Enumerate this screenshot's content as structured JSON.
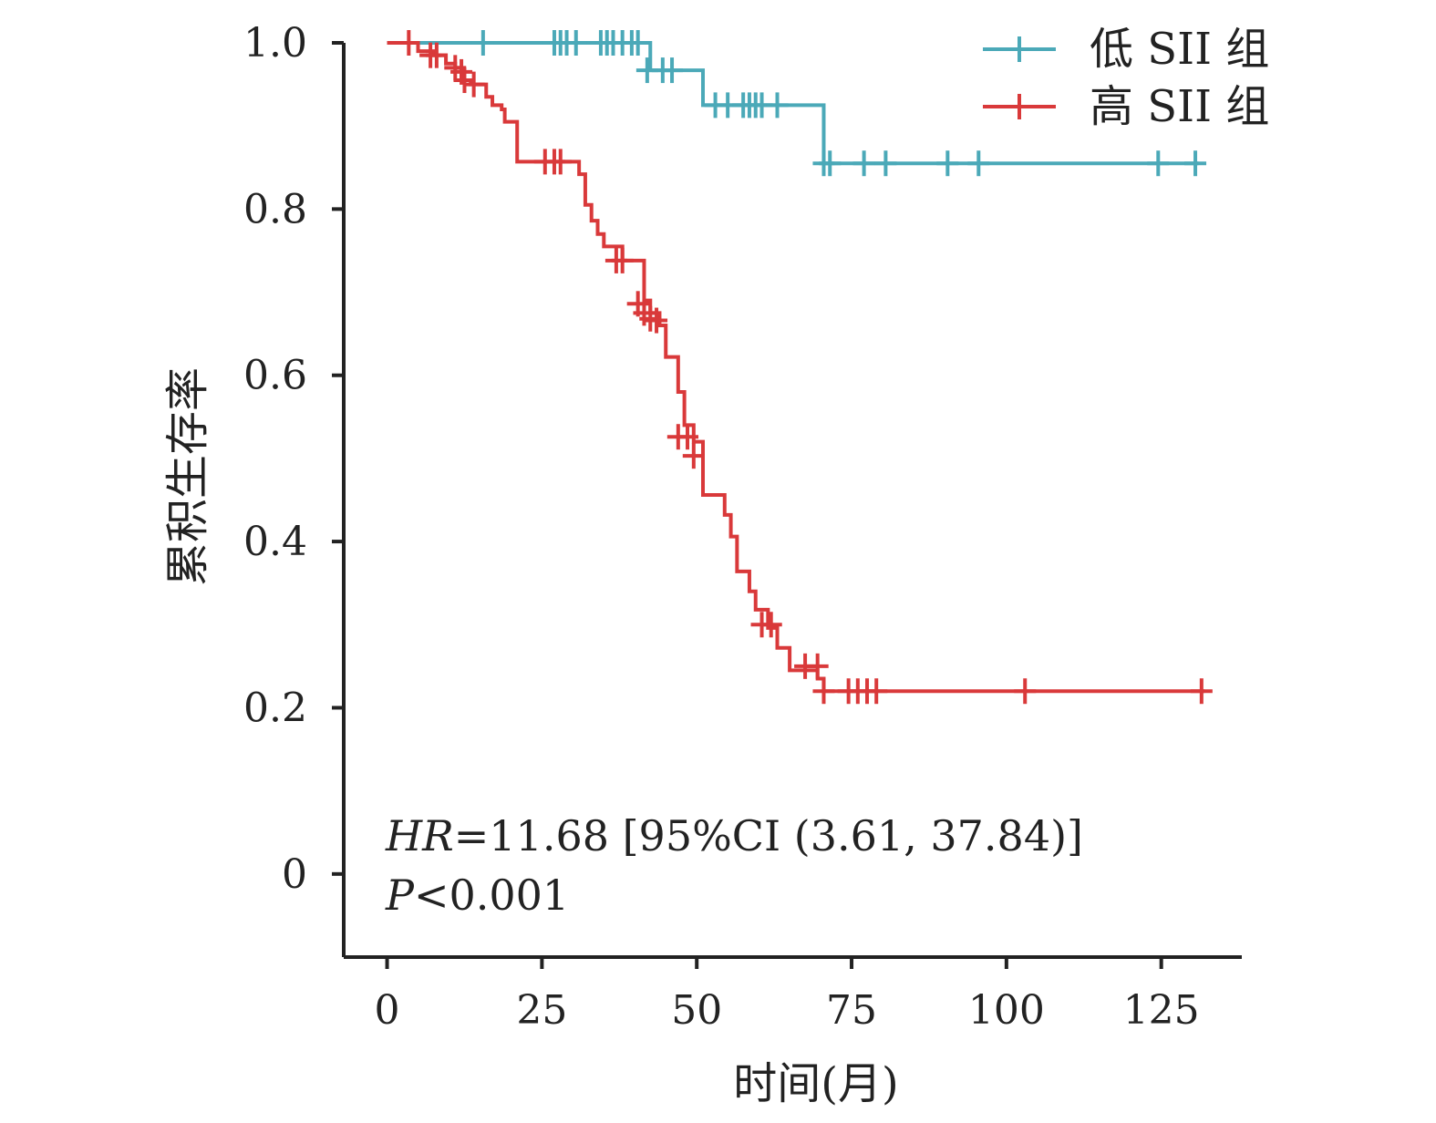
{
  "chart_data": {
    "type": "line",
    "subtype": "kaplan-meier",
    "title": "",
    "xlabel": "时间(月)",
    "ylabel": "累积生存率",
    "xlim": [
      -7,
      138
    ],
    "ylim": [
      -0.1,
      1.0
    ],
    "xticks": [
      0,
      25,
      50,
      75,
      100,
      125
    ],
    "xtick_labels": [
      "0",
      "25",
      "50",
      "75",
      "100",
      "125"
    ],
    "yticks": [
      0,
      0.2,
      0.4,
      0.6,
      0.8,
      1.0
    ],
    "ytick_labels": [
      "0",
      "0.2",
      "0.4",
      "0.6",
      "0.8",
      "1.0"
    ],
    "grid": false,
    "legend": "top-right",
    "annotations": {
      "hr_label": "HR",
      "hr_value": "=11.68 [95%CI (3.61, 37.84)]",
      "p_label": "P",
      "p_value": "<0.001"
    },
    "series": [
      {
        "name": "低 SII 组",
        "color": "#4BA9B8",
        "steps": [
          [
            0,
            1.0
          ],
          [
            42.5,
            0.967
          ],
          [
            51,
            0.925
          ],
          [
            70.5,
            0.855
          ],
          [
            131,
            0.855
          ]
        ],
        "censored": [
          [
            15.5,
            1.0
          ],
          [
            27,
            1.0
          ],
          [
            28,
            1.0
          ],
          [
            29,
            1.0
          ],
          [
            30.5,
            1.0
          ],
          [
            34.5,
            1.0
          ],
          [
            35.5,
            1.0
          ],
          [
            36.5,
            1.0
          ],
          [
            38,
            1.0
          ],
          [
            39.5,
            1.0
          ],
          [
            40.5,
            1.0
          ],
          [
            42,
            0.967
          ],
          [
            44.5,
            0.967
          ],
          [
            46,
            0.967
          ],
          [
            53,
            0.925
          ],
          [
            55,
            0.925
          ],
          [
            57.5,
            0.925
          ],
          [
            58.5,
            0.925
          ],
          [
            59.5,
            0.925
          ],
          [
            60.5,
            0.925
          ],
          [
            63,
            0.925
          ],
          [
            70.5,
            0.855
          ],
          [
            71.5,
            0.855
          ],
          [
            77,
            0.855
          ],
          [
            80.5,
            0.855
          ],
          [
            90.5,
            0.855
          ],
          [
            95.5,
            0.855
          ],
          [
            124.5,
            0.855
          ],
          [
            130.5,
            0.855
          ]
        ]
      },
      {
        "name": "高 SII 组",
        "color": "#D9393A",
        "steps": [
          [
            0,
            1.0
          ],
          [
            5,
            0.99
          ],
          [
            7.5,
            0.985
          ],
          [
            9.5,
            0.975
          ],
          [
            11,
            0.97
          ],
          [
            12,
            0.955
          ],
          [
            13.5,
            0.95
          ],
          [
            16,
            0.935
          ],
          [
            17,
            0.925
          ],
          [
            18.5,
            0.92
          ],
          [
            19,
            0.905
          ],
          [
            21,
            0.857
          ],
          [
            31,
            0.842
          ],
          [
            32,
            0.805
          ],
          [
            33,
            0.786
          ],
          [
            34,
            0.77
          ],
          [
            35,
            0.755
          ],
          [
            38,
            0.738
          ],
          [
            41.5,
            0.69
          ],
          [
            42.5,
            0.675
          ],
          [
            44,
            0.66
          ],
          [
            45,
            0.622
          ],
          [
            47,
            0.58
          ],
          [
            48,
            0.54
          ],
          [
            49.5,
            0.52
          ],
          [
            51,
            0.456
          ],
          [
            54.5,
            0.432
          ],
          [
            55.5,
            0.406
          ],
          [
            56.5,
            0.364
          ],
          [
            58.5,
            0.34
          ],
          [
            59.5,
            0.318
          ],
          [
            61.5,
            0.296
          ],
          [
            63,
            0.272
          ],
          [
            65,
            0.245
          ],
          [
            69.5,
            0.235
          ],
          [
            70.5,
            0.22
          ],
          [
            132,
            0.22
          ]
        ],
        "censored": [
          [
            3.5,
            1.0
          ],
          [
            7,
            0.985
          ],
          [
            8,
            0.985
          ],
          [
            11,
            0.97
          ],
          [
            12,
            0.965
          ],
          [
            12.5,
            0.955
          ],
          [
            14,
            0.95
          ],
          [
            25.5,
            0.857
          ],
          [
            27,
            0.857
          ],
          [
            28,
            0.857
          ],
          [
            37,
            0.738
          ],
          [
            38,
            0.738
          ],
          [
            40.5,
            0.686
          ],
          [
            41.5,
            0.675
          ],
          [
            42.5,
            0.668
          ],
          [
            43.5,
            0.666
          ],
          [
            47,
            0.526
          ],
          [
            48.5,
            0.526
          ],
          [
            49.5,
            0.503
          ],
          [
            60.5,
            0.3
          ],
          [
            62,
            0.3
          ],
          [
            67.5,
            0.25
          ],
          [
            69.5,
            0.25
          ],
          [
            70.5,
            0.22
          ],
          [
            74.5,
            0.22
          ],
          [
            76,
            0.22
          ],
          [
            77.5,
            0.22
          ],
          [
            79,
            0.22
          ],
          [
            103,
            0.22
          ],
          [
            131.5,
            0.22
          ]
        ]
      }
    ]
  }
}
